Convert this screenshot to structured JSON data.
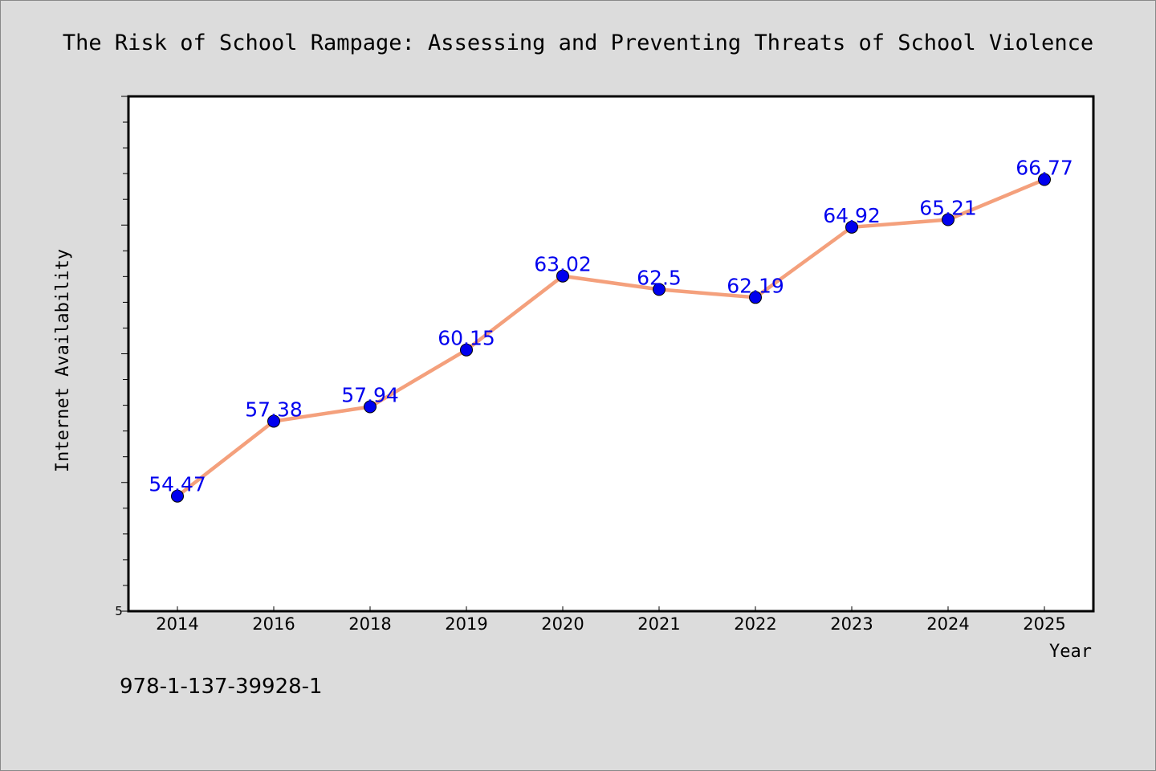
{
  "chart_data": {
    "type": "line",
    "title": "The Risk of School Rampage: Assessing and Preventing Threats of School Violence",
    "xlabel": "Year",
    "ylabel": "Internet Availability",
    "categories": [
      "2014",
      "2016",
      "2018",
      "2019",
      "2020",
      "2021",
      "2022",
      "2023",
      "2024",
      "2025"
    ],
    "series": [
      {
        "values": [
          54.47,
          57.38,
          57.94,
          60.15,
          63.02,
          62.5,
          62.19,
          64.92,
          65.21,
          66.77
        ]
      }
    ],
    "data_labels": [
      "54.47",
      "57.38",
      "57.94",
      "60.15",
      "63.02",
      "62.5",
      "62.19",
      "64.92",
      "65.21",
      "66.77"
    ],
    "ylim": [
      50,
      70
    ],
    "y_tick_labels": [
      "5"
    ],
    "grid": false,
    "legend": "none",
    "colors": {
      "line": "#f4a07c",
      "marker": "#0000ee",
      "label": "#0000ee",
      "plot_bg": "#ffffff",
      "page_bg": "#dcdcdc"
    }
  },
  "footer": {
    "isbn": "978-1-137-39928-1"
  }
}
